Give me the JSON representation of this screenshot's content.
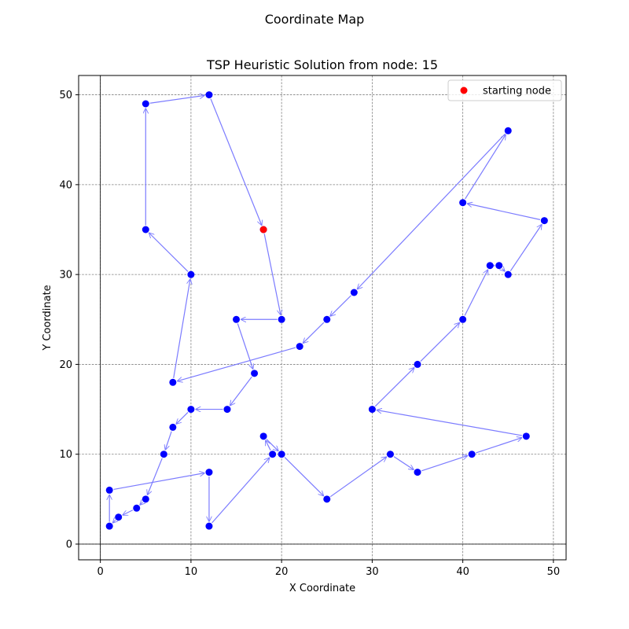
{
  "figure": {
    "suptitle": "Coordinate Map"
  },
  "chart_data": {
    "type": "scatter",
    "title": "TSP Heuristic Solution from node: 15",
    "xlabel": "X Coordinate",
    "ylabel": "Y Coordinate",
    "xlim": [
      -2.4,
      51.4
    ],
    "ylim": [
      -1.75,
      52.15
    ],
    "xticks": [
      0,
      10,
      20,
      30,
      40,
      50
    ],
    "yticks": [
      0,
      10,
      20,
      30,
      40,
      50
    ],
    "grid": true,
    "axis_lines_at_zero": true,
    "legend": {
      "position": "top-right",
      "entries": [
        "starting node"
      ]
    },
    "colors": {
      "nodes": "#0000ff",
      "start": "#ff0000",
      "path": "#7b7bff"
    },
    "start": [
      18,
      35
    ],
    "tour": [
      [
        18,
        35
      ],
      [
        20,
        25
      ],
      [
        15,
        25
      ],
      [
        17,
        19
      ],
      [
        14,
        15
      ],
      [
        10,
        15
      ],
      [
        8,
        13
      ],
      [
        7,
        10
      ],
      [
        5,
        5
      ],
      [
        4,
        4
      ],
      [
        2,
        3
      ],
      [
        1,
        2
      ],
      [
        1,
        6
      ],
      [
        12,
        8
      ],
      [
        12,
        2
      ],
      [
        19,
        10
      ],
      [
        18,
        12
      ],
      [
        20,
        10
      ],
      [
        25,
        5
      ],
      [
        32,
        10
      ],
      [
        35,
        8
      ],
      [
        41,
        10
      ],
      [
        47,
        12
      ],
      [
        30,
        15
      ],
      [
        35,
        20
      ],
      [
        40,
        25
      ],
      [
        43,
        31
      ],
      [
        44,
        31
      ],
      [
        45,
        30
      ],
      [
        49,
        36
      ],
      [
        40,
        38
      ],
      [
        45,
        46
      ],
      [
        28,
        28
      ],
      [
        25,
        25
      ],
      [
        22,
        22
      ],
      [
        8,
        18
      ],
      [
        10,
        30
      ],
      [
        5,
        35
      ],
      [
        5,
        49
      ],
      [
        12,
        50
      ],
      [
        18,
        35
      ]
    ]
  }
}
